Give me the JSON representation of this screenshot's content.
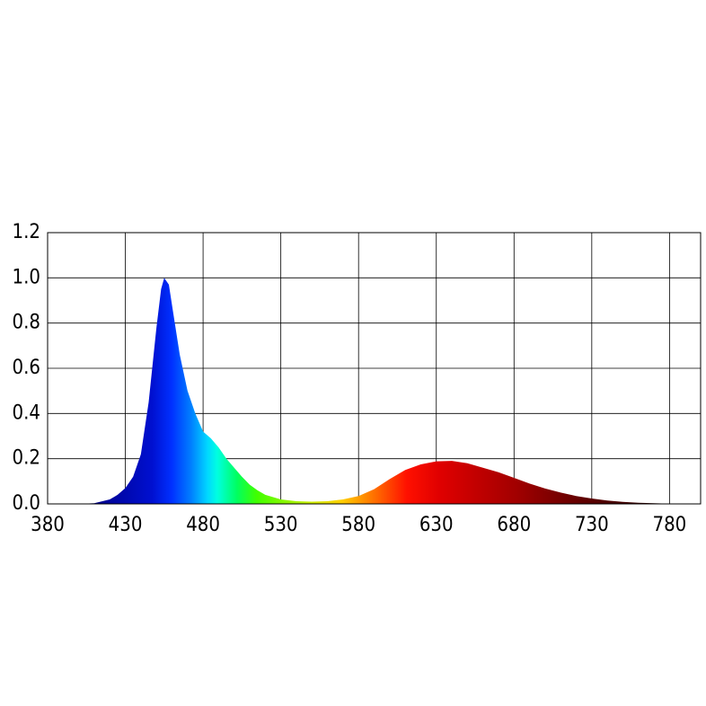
{
  "chart_data": {
    "type": "area",
    "colormap": "spectrum",
    "grid": true,
    "x": [
      400,
      410,
      420,
      425,
      430,
      435,
      440,
      445,
      450,
      453,
      455,
      458,
      460,
      465,
      470,
      475,
      480,
      485,
      490,
      495,
      500,
      505,
      510,
      515,
      520,
      530,
      540,
      550,
      560,
      570,
      580,
      590,
      600,
      610,
      620,
      630,
      640,
      650,
      660,
      670,
      680,
      690,
      700,
      710,
      720,
      730,
      740,
      750,
      760,
      770,
      780,
      790
    ],
    "y": [
      0,
      0.003,
      0.02,
      0.04,
      0.07,
      0.12,
      0.22,
      0.45,
      0.78,
      0.95,
      1.0,
      0.97,
      0.88,
      0.66,
      0.5,
      0.4,
      0.32,
      0.29,
      0.25,
      0.2,
      0.16,
      0.12,
      0.085,
      0.06,
      0.04,
      0.02,
      0.012,
      0.01,
      0.012,
      0.02,
      0.035,
      0.065,
      0.11,
      0.15,
      0.175,
      0.188,
      0.19,
      0.18,
      0.16,
      0.14,
      0.115,
      0.09,
      0.068,
      0.05,
      0.035,
      0.024,
      0.015,
      0.009,
      0.005,
      0.003,
      0.001,
      0
    ],
    "xlim": [
      380,
      800
    ],
    "ylim": [
      0,
      1.2
    ],
    "xticks": [
      380,
      430,
      480,
      530,
      580,
      630,
      680,
      730,
      780
    ],
    "yticks": [
      {
        "value": 0,
        "label": "0.0"
      },
      0.2,
      0.4,
      0.6,
      0.8,
      {
        "value": 1,
        "label": "1.0"
      },
      1.2
    ]
  }
}
